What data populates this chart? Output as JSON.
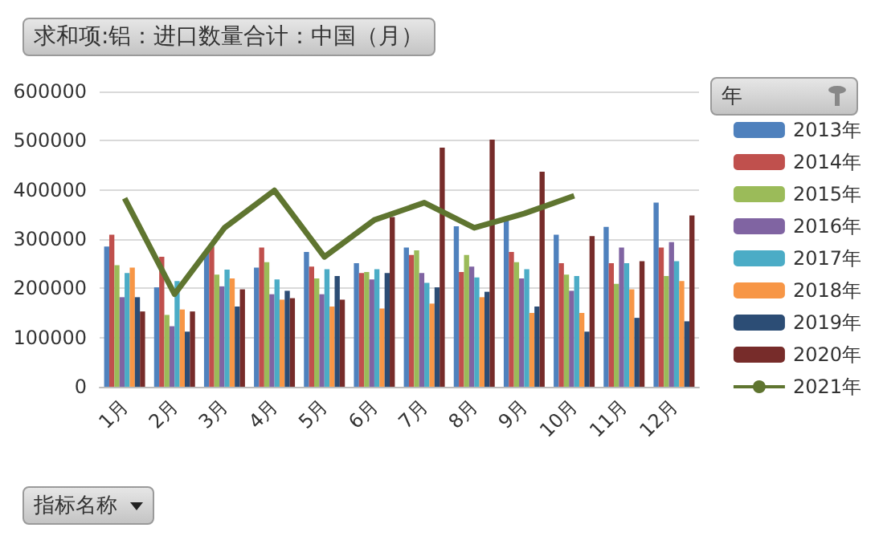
{
  "chart_data": {
    "type": "bar",
    "title": "求和项:铝：进口数量合计：中国（月）",
    "legend_title": "年",
    "annotations": [
      "指标名称"
    ],
    "categories": [
      "1月",
      "2月",
      "3月",
      "4月",
      "5月",
      "6月",
      "7月",
      "8月",
      "9月",
      "10月",
      "11月",
      "12月"
    ],
    "ylim": [
      0,
      600000
    ],
    "yticks": [
      0,
      100000,
      200000,
      300000,
      400000,
      500000,
      600000
    ],
    "grid": "y",
    "legend": "right",
    "marker": "none",
    "series": [
      {
        "name": "2013年",
        "color": "#4f81bd",
        "values": [
          285000,
          202000,
          274000,
          242000,
          274000,
          251000,
          283000,
          326000,
          345000,
          309000,
          325000,
          374000
        ]
      },
      {
        "name": "2014年",
        "color": "#c0504d",
        "values": [
          309000,
          264000,
          285000,
          283000,
          244000,
          231000,
          268000,
          233000,
          274000,
          251000,
          251000,
          283000
        ]
      },
      {
        "name": "2015年",
        "color": "#9bbb59",
        "values": [
          247000,
          146000,
          228000,
          253000,
          220000,
          233000,
          277000,
          268000,
          253000,
          228000,
          209000,
          225000
        ]
      },
      {
        "name": "2016年",
        "color": "#8064a2",
        "values": [
          182000,
          123000,
          204000,
          188000,
          188000,
          218000,
          231000,
          244000,
          220000,
          195000,
          283000,
          294000
        ]
      },
      {
        "name": "2017年",
        "color": "#4bacc6",
        "values": [
          231000,
          215000,
          238000,
          218000,
          239000,
          239000,
          211000,
          222000,
          239000,
          225000,
          251000,
          255000
        ]
      },
      {
        "name": "2018年",
        "color": "#f79646",
        "values": [
          242000,
          157000,
          220000,
          177000,
          163000,
          159000,
          169000,
          182000,
          150000,
          150000,
          198000,
          215000
        ]
      },
      {
        "name": "2019年",
        "color": "#2c4d75",
        "values": [
          182000,
          112000,
          163000,
          195000,
          225000,
          231000,
          202000,
          193000,
          163000,
          112000,
          140000,
          133000
        ]
      },
      {
        "name": "2020年",
        "color": "#772c2a",
        "values": [
          153000,
          153000,
          198000,
          180000,
          177000,
          345000,
          486000,
          502000,
          437000,
          306000,
          255000,
          348000
        ]
      },
      {
        "name": "2021年",
        "type": "line",
        "color": "#5f7530",
        "values": [
          383000,
          188000,
          323000,
          399000,
          264000,
          339000,
          374000,
          323000,
          352000,
          388000,
          null,
          null
        ]
      }
    ]
  }
}
